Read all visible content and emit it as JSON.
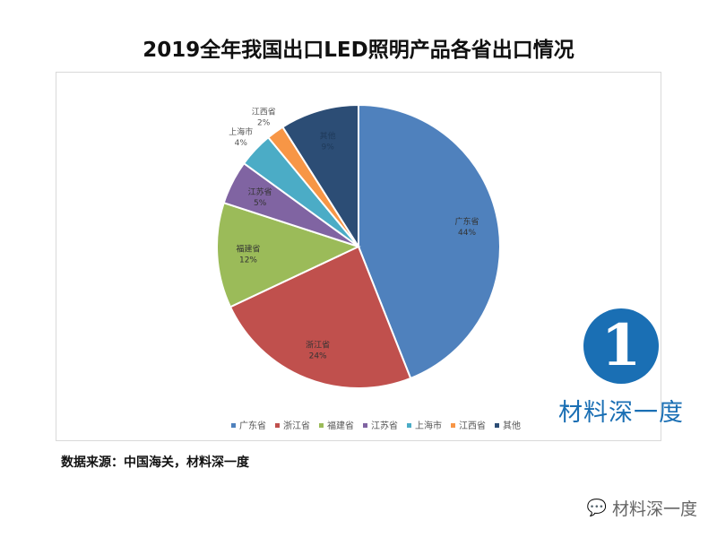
{
  "chart_data": {
    "type": "pie",
    "title": "2019全年我国出口LED照明产品各省出口情况",
    "categories": [
      "广东省",
      "浙江省",
      "福建省",
      "江苏省",
      "上海市",
      "江西省",
      "其他"
    ],
    "values": [
      44,
      24,
      12,
      5,
      4,
      2,
      9
    ],
    "labels": [
      "44%",
      "24%",
      "12%",
      "5%",
      "4%",
      "2%",
      "9%"
    ],
    "colors": [
      "#4f81bd",
      "#c0504d",
      "#9bbb59",
      "#8064a2",
      "#4bacc6",
      "#f79646",
      "#2c4d75"
    ],
    "start": "12 o'clock, clockwise",
    "legend": "bottom"
  },
  "source": "数据来源：中国海关，材料深一度",
  "logo": {
    "text": "材料深一度",
    "mark": "1"
  },
  "watermark": {
    "text": "材料深一度",
    "icon": "wechat-icon"
  }
}
